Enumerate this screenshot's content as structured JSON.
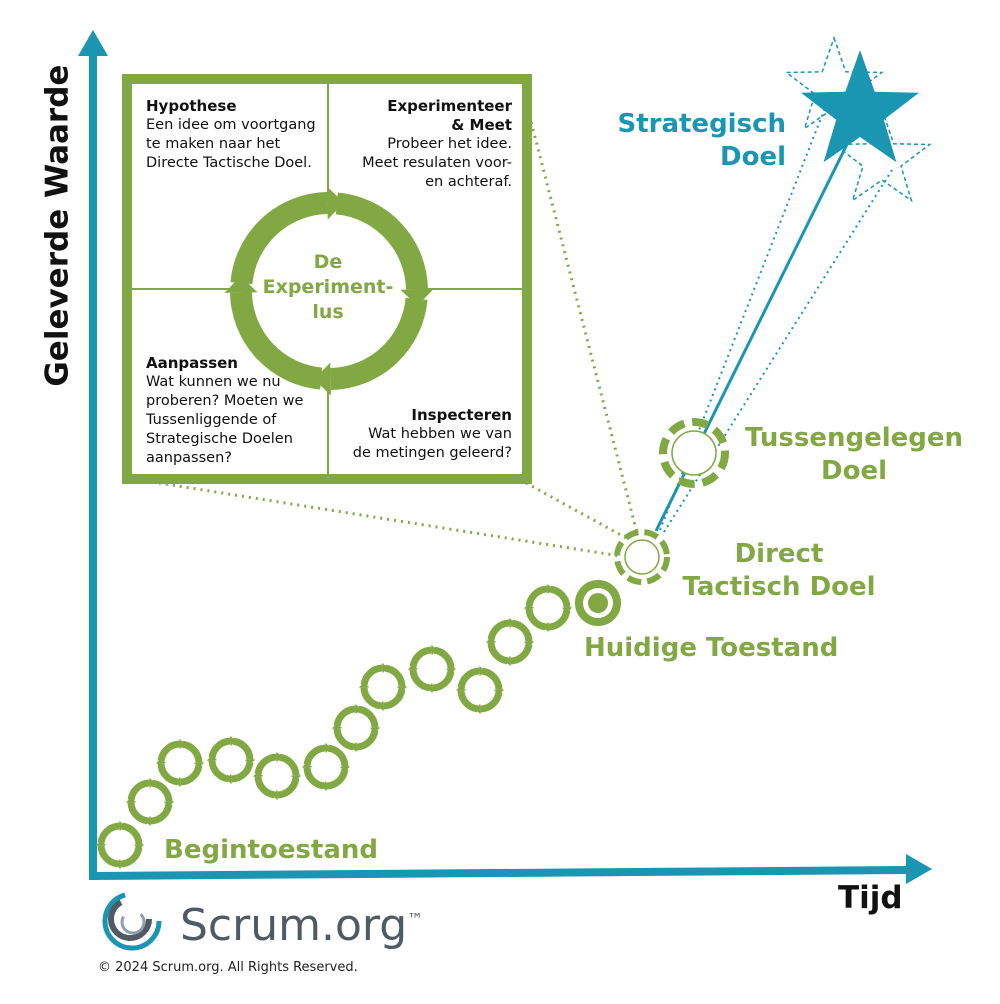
{
  "colors": {
    "green": "#82a844",
    "teal": "#1a95b2",
    "dark": "#111111",
    "logo_gray": "#4f5a64"
  },
  "axes": {
    "y_label": "Geleverde Waarde",
    "x_label": "Tijd"
  },
  "loop": {
    "title": "De\nExperiment-\nlus",
    "hypothesis": {
      "heading": "Hypothese",
      "body": "Een idee om voortgang\nte maken naar het\nDirecte Tactische Doel."
    },
    "experiment": {
      "heading": "Experimenteer\n& Meet",
      "body": "Probeer het idee.\nMeet resulaten voor-\nen achteraf."
    },
    "adapt": {
      "heading": "Aanpassen",
      "body": "Wat kunnen we nu\nproberen? Moeten we\nTussenliggende of\nStrategische Doelen\naanpassen?"
    },
    "inspect": {
      "heading": "Inspecteren",
      "body": "Wat hebben we van\nde metingen geleerd?"
    }
  },
  "labels": {
    "start": "Begintoestand",
    "current": "Huidige Toestand",
    "tactical": "Direct\nTactisch Doel",
    "intermediate": "Tussengelegen\nDoel",
    "strategic": "Strategisch\nDoel"
  },
  "brand": {
    "name": "Scrum",
    "suffix": ".org",
    "tm": "™",
    "copyright": "2024 Scrum.org. All Rights Reserved.",
    "copyright_symbol": "©"
  }
}
